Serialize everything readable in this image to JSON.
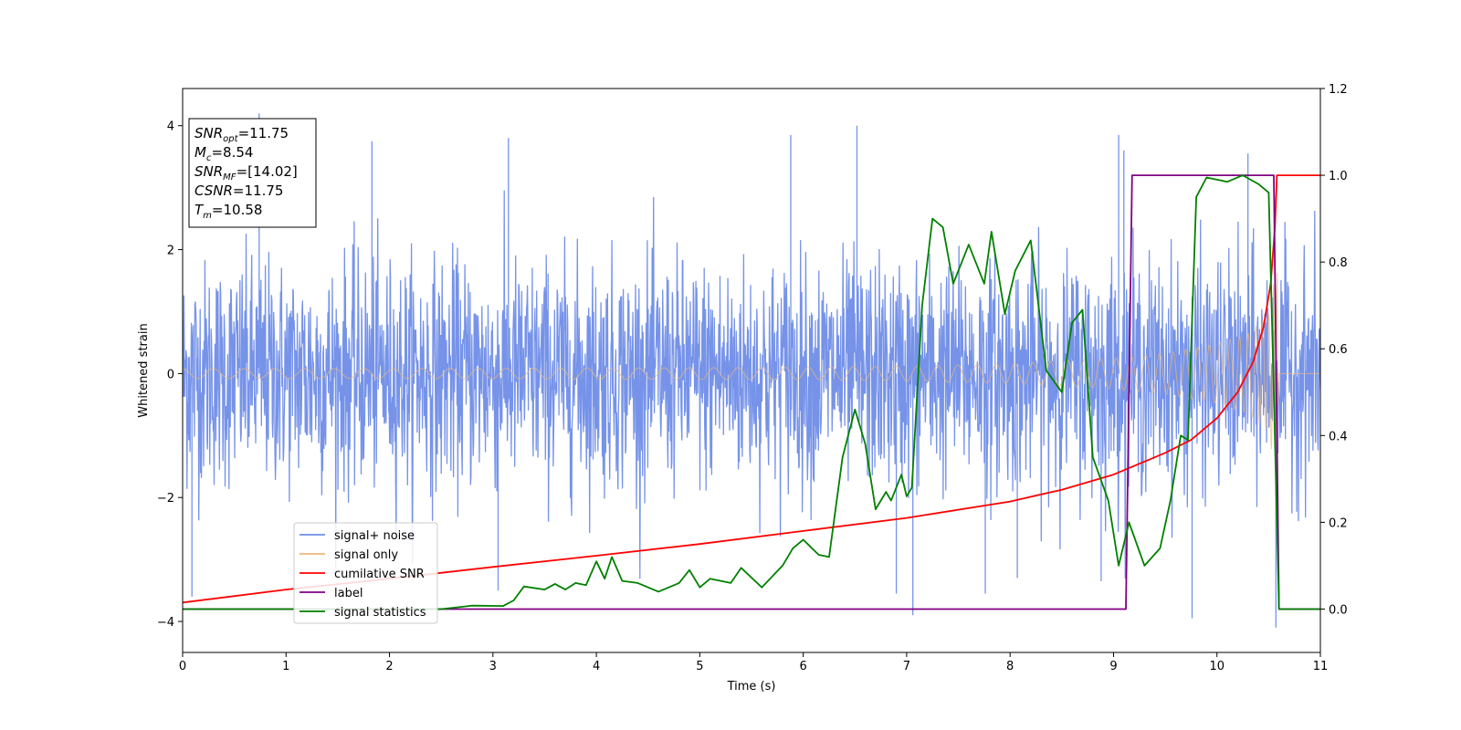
{
  "chart_data": {
    "type": "line",
    "title": "",
    "xlabel": "Time (s)",
    "ylabel": "Whitened strain",
    "xlim": [
      0,
      11
    ],
    "ylim": [
      -4.5,
      4.6
    ],
    "y2lim": [
      -0.1,
      1.2
    ],
    "xticks": [
      "0",
      "1",
      "2",
      "3",
      "4",
      "5",
      "6",
      "7",
      "8",
      "9",
      "10",
      "11"
    ],
    "yticks": [
      "4",
      "2",
      "0",
      "−2",
      "−4"
    ],
    "y2ticks": [
      "0.0",
      "0.2",
      "0.4",
      "0.6",
      "0.8",
      "1.0",
      "1.2"
    ],
    "grid": false,
    "legend_position": "lower-left",
    "annotation": {
      "lines": [
        {
          "sym": "SNR",
          "sub": "opt",
          "eq": "=11.75"
        },
        {
          "sym": "M",
          "sub": "c",
          "eq": "=8.54"
        },
        {
          "sym": "SNR",
          "sub": "MF",
          "eq": "=[14.02]"
        },
        {
          "sym": "CSNR",
          "sub": "",
          "eq": "=11.75"
        },
        {
          "sym": "T",
          "sub": "m",
          "eq": "=10.58"
        }
      ]
    },
    "series": [
      {
        "name": "signal+ noise",
        "axis": "left",
        "color": "#6f8de8",
        "style": "noise",
        "envelope": [
          [
            0,
            1.5
          ],
          [
            1,
            1.5
          ],
          [
            2,
            1.5
          ],
          [
            3,
            1.5
          ],
          [
            4,
            1.5
          ],
          [
            5,
            1.5
          ],
          [
            6,
            1.5
          ],
          [
            7,
            1.5
          ],
          [
            8,
            1.5
          ],
          [
            9,
            1.5
          ],
          [
            10,
            1.5
          ],
          [
            11,
            1.5
          ]
        ],
        "peaks": [
          [
            0.74,
            4.2
          ],
          [
            0.09,
            -3.6
          ],
          [
            1.83,
            3.75
          ],
          [
            3.05,
            -3.5
          ],
          [
            3.15,
            3.8
          ],
          [
            5.88,
            3.85
          ],
          [
            6.52,
            4.0
          ],
          [
            6.9,
            -3.55
          ],
          [
            7.06,
            -3.9
          ],
          [
            7.76,
            -3.55
          ],
          [
            8.07,
            -3.3
          ],
          [
            8.88,
            -3.35
          ],
          [
            9.1,
            3.6
          ],
          [
            9.05,
            3.85
          ],
          [
            9.76,
            -3.95
          ],
          [
            10.3,
            3.55
          ],
          [
            10.57,
            -4.1
          ]
        ]
      },
      {
        "name": "signal only",
        "axis": "left",
        "color": "#e9b878",
        "style": "chirp",
        "amplitude": [
          [
            0,
            0.08
          ],
          [
            2,
            0.08
          ],
          [
            4,
            0.09
          ],
          [
            6,
            0.1
          ],
          [
            7,
            0.12
          ],
          [
            8,
            0.16
          ],
          [
            9,
            0.25
          ],
          [
            9.5,
            0.33
          ],
          [
            10,
            0.48
          ],
          [
            10.3,
            0.65
          ],
          [
            10.5,
            0.95
          ],
          [
            10.58,
            1.8
          ],
          [
            10.6,
            0.0
          ],
          [
            11,
            0.0
          ]
        ]
      },
      {
        "name": "cumilative SNR",
        "axis": "right",
        "color": "#ff0000",
        "points": [
          [
            0,
            0.015
          ],
          [
            1,
            0.045
          ],
          [
            2,
            0.07
          ],
          [
            3,
            0.097
          ],
          [
            4,
            0.123
          ],
          [
            5,
            0.15
          ],
          [
            6,
            0.18
          ],
          [
            7,
            0.21
          ],
          [
            8,
            0.248
          ],
          [
            8.5,
            0.275
          ],
          [
            9,
            0.31
          ],
          [
            9.5,
            0.36
          ],
          [
            9.75,
            0.39
          ],
          [
            10,
            0.44
          ],
          [
            10.2,
            0.5
          ],
          [
            10.35,
            0.57
          ],
          [
            10.45,
            0.65
          ],
          [
            10.52,
            0.75
          ],
          [
            10.56,
            0.88
          ],
          [
            10.58,
            1.0
          ],
          [
            11,
            1.0
          ]
        ]
      },
      {
        "name": "label",
        "axis": "right",
        "color": "#800080",
        "points": [
          [
            0,
            0.0
          ],
          [
            9.12,
            0.0
          ],
          [
            9.18,
            1.0
          ],
          [
            10.55,
            1.0
          ],
          [
            10.6,
            0.0
          ],
          [
            11,
            0.0
          ]
        ]
      },
      {
        "name": "signal statistics",
        "axis": "right",
        "color": "#008000",
        "points": [
          [
            0,
            0.0
          ],
          [
            1.5,
            0.0
          ],
          [
            2.5,
            0.0
          ],
          [
            2.8,
            0.008
          ],
          [
            3.1,
            0.007
          ],
          [
            3.2,
            0.02
          ],
          [
            3.3,
            0.052
          ],
          [
            3.5,
            0.045
          ],
          [
            3.6,
            0.058
          ],
          [
            3.7,
            0.045
          ],
          [
            3.8,
            0.06
          ],
          [
            3.9,
            0.055
          ],
          [
            4.0,
            0.11
          ],
          [
            4.08,
            0.07
          ],
          [
            4.15,
            0.12
          ],
          [
            4.25,
            0.065
          ],
          [
            4.4,
            0.06
          ],
          [
            4.6,
            0.04
          ],
          [
            4.8,
            0.06
          ],
          [
            4.9,
            0.09
          ],
          [
            5.0,
            0.05
          ],
          [
            5.1,
            0.07
          ],
          [
            5.3,
            0.06
          ],
          [
            5.4,
            0.095
          ],
          [
            5.6,
            0.05
          ],
          [
            5.8,
            0.1
          ],
          [
            5.9,
            0.14
          ],
          [
            6.0,
            0.16
          ],
          [
            6.15,
            0.125
          ],
          [
            6.25,
            0.12
          ],
          [
            6.38,
            0.35
          ],
          [
            6.5,
            0.46
          ],
          [
            6.6,
            0.38
          ],
          [
            6.7,
            0.23
          ],
          [
            6.8,
            0.27
          ],
          [
            6.85,
            0.25
          ],
          [
            6.95,
            0.31
          ],
          [
            7.0,
            0.26
          ],
          [
            7.05,
            0.28
          ],
          [
            7.15,
            0.7
          ],
          [
            7.25,
            0.9
          ],
          [
            7.35,
            0.88
          ],
          [
            7.45,
            0.75
          ],
          [
            7.6,
            0.84
          ],
          [
            7.75,
            0.75
          ],
          [
            7.82,
            0.87
          ],
          [
            7.95,
            0.68
          ],
          [
            8.05,
            0.78
          ],
          [
            8.2,
            0.85
          ],
          [
            8.35,
            0.55
          ],
          [
            8.5,
            0.5
          ],
          [
            8.6,
            0.66
          ],
          [
            8.7,
            0.69
          ],
          [
            8.8,
            0.35
          ],
          [
            8.95,
            0.25
          ],
          [
            9.05,
            0.1
          ],
          [
            9.15,
            0.2
          ],
          [
            9.3,
            0.1
          ],
          [
            9.45,
            0.14
          ],
          [
            9.55,
            0.25
          ],
          [
            9.65,
            0.4
          ],
          [
            9.72,
            0.39
          ],
          [
            9.8,
            0.95
          ],
          [
            9.9,
            0.995
          ],
          [
            10.1,
            0.985
          ],
          [
            10.25,
            1.0
          ],
          [
            10.4,
            0.98
          ],
          [
            10.5,
            0.96
          ],
          [
            10.55,
            0.5
          ],
          [
            10.6,
            0.0
          ],
          [
            11,
            0.0
          ]
        ]
      }
    ]
  }
}
